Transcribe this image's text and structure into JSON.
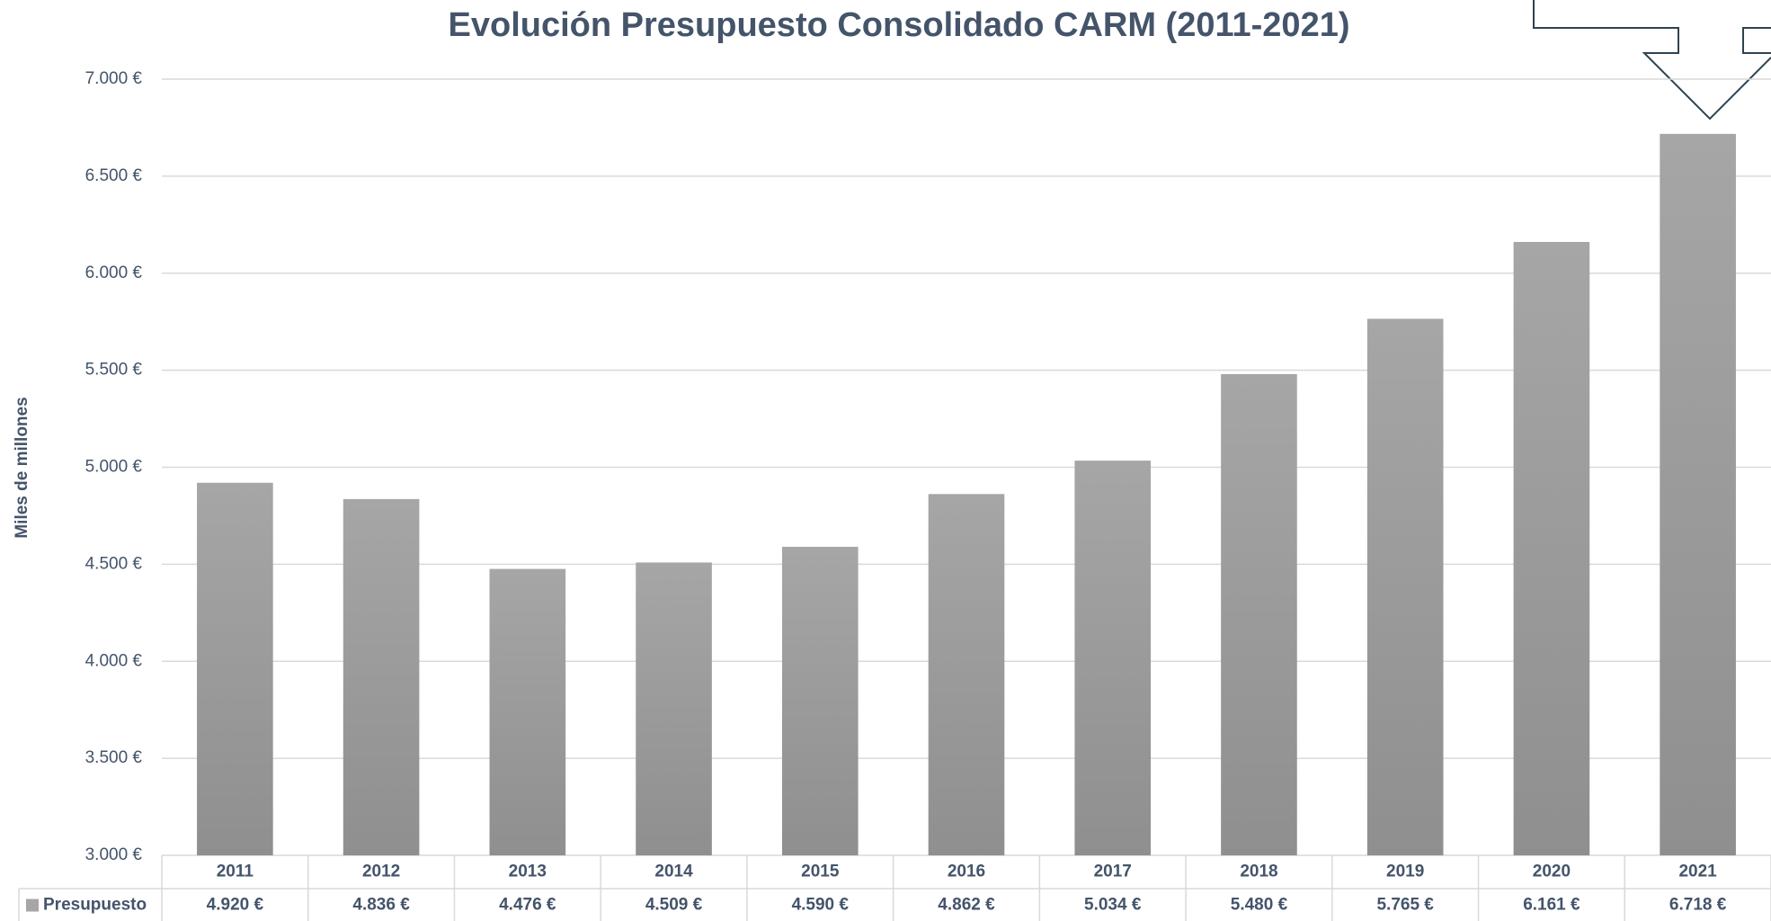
{
  "chart_data": {
    "type": "bar",
    "title": "Evolución Presupuesto Consolidado CARM (2011-2021)",
    "y_label": "Miles de millones",
    "categories": [
      "2011",
      "2012",
      "2013",
      "2014",
      "2015",
      "2016",
      "2017",
      "2018",
      "2019",
      "2020",
      "2021"
    ],
    "series": [
      {
        "name": "Presupuesto",
        "color": "#a6a6a6",
        "values": [
          4920,
          4836,
          4476,
          4509,
          4590,
          4862,
          5034,
          5480,
          5765,
          6161,
          6718
        ],
        "value_labels": [
          "4.920 €",
          "4.836 €",
          "4.476 €",
          "4.509 €",
          "4.590 €",
          "4.862 €",
          "5.034 €",
          "5.480 €",
          "5.765 €",
          "6.161 €",
          "6.718 €"
        ]
      }
    ],
    "ylim": [
      3000,
      7000
    ],
    "yticks": [
      {
        "value": 3000,
        "label": "3.000 €"
      },
      {
        "value": 3500,
        "label": "3.500 €"
      },
      {
        "value": 4000,
        "label": "4.000 €"
      },
      {
        "value": 4500,
        "label": "4.500 €"
      },
      {
        "value": 5000,
        "label": "5.000 €"
      },
      {
        "value": 5500,
        "label": "5.500 €"
      },
      {
        "value": 6000,
        "label": "6.000 €"
      },
      {
        "value": 6500,
        "label": "6.500 €"
      },
      {
        "value": 7000,
        "label": "7.000 €"
      }
    ],
    "grid": true
  }
}
